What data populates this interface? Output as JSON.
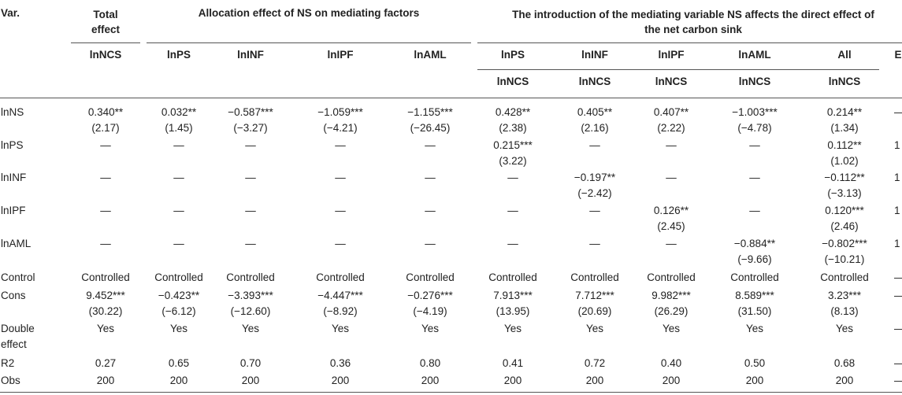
{
  "header": {
    "var_label": "Var.",
    "total_effect_line1": "Total",
    "total_effect_line2": "effect",
    "allocation_title": "Allocation effect of NS on mediating factors",
    "introduction_title_line1": "The introduction of the mediating variable NS affects the direct effect of",
    "introduction_title_line2": "the net carbon sink",
    "subheaders": [
      "lnNCS",
      "lnPS",
      "lnINF",
      "lnIPF",
      "lnAML",
      "lnPS",
      "lnINF",
      "lnIPF",
      "lnAML",
      "All",
      "E"
    ],
    "subheaders2": [
      "",
      "",
      "",
      "",
      "",
      "lnNCS",
      "lnNCS",
      "lnNCS",
      "lnNCS",
      "lnNCS",
      ""
    ]
  },
  "rows": [
    {
      "label": "lnNS",
      "top": [
        "0.340**",
        "0.032**",
        "−0.587***",
        "−1.059***",
        "−1.155***",
        "0.428**",
        "0.405**",
        "0.407**",
        "−1.003***",
        "0.214**",
        "—"
      ],
      "bottom": [
        "(2.17)",
        "(1.45)",
        "(−3.27)",
        "(−4.21)",
        "(−26.45)",
        "(2.38)",
        "(2.16)",
        "(2.22)",
        "(−4.78)",
        "(1.34)",
        ""
      ]
    },
    {
      "label": "lnPS",
      "top": [
        "—",
        "—",
        "—",
        "—",
        "—",
        "0.215***",
        "—",
        "—",
        "—",
        "0.112**",
        "1"
      ],
      "bottom": [
        "",
        "",
        "",
        "",
        "",
        "(3.22)",
        "",
        "",
        "",
        "(1.02)",
        ""
      ]
    },
    {
      "label": "lnINF",
      "top": [
        "—",
        "—",
        "—",
        "—",
        "—",
        "—",
        "−0.197**",
        "—",
        "—",
        "−0.112**",
        "1"
      ],
      "bottom": [
        "",
        "",
        "",
        "",
        "",
        "",
        "(−2.42)",
        "",
        "",
        "(−3.13)",
        ""
      ]
    },
    {
      "label": "lnIPF",
      "top": [
        "—",
        "—",
        "—",
        "—",
        "—",
        "—",
        "—",
        "0.126**",
        "—",
        "0.120***",
        "1"
      ],
      "bottom": [
        "",
        "",
        "",
        "",
        "",
        "",
        "",
        "(2.45)",
        "",
        "(2.46)",
        ""
      ]
    },
    {
      "label": "lnAML",
      "top": [
        "—",
        "—",
        "—",
        "—",
        "—",
        "—",
        "—",
        "—",
        "−0.884**",
        "−0.802***",
        "1"
      ],
      "bottom": [
        "",
        "",
        "",
        "",
        "",
        "",
        "",
        "",
        "(−9.66)",
        "(−10.21)",
        ""
      ]
    },
    {
      "label": "Control",
      "top": [
        "Controlled",
        "Controlled",
        "Controlled",
        "Controlled",
        "Controlled",
        "Controlled",
        "Controlled",
        "Controlled",
        "Controlled",
        "Controlled",
        "—"
      ],
      "bottom": [
        "",
        "",
        "",
        "",
        "",
        "",
        "",
        "",
        "",
        "",
        ""
      ]
    },
    {
      "label": "Cons",
      "top": [
        "9.452***",
        "−0.423**",
        "−3.393***",
        "−4.447***",
        "−0.276***",
        "7.913***",
        "7.712***",
        "9.982***",
        "8.589***",
        "3.23***",
        "—"
      ],
      "bottom": [
        "(30.22)",
        "(−6.12)",
        "(−12.60)",
        "(−8.92)",
        "(−4.19)",
        "(13.95)",
        "(20.69)",
        "(26.29)",
        "(31.50)",
        "(8.13)",
        ""
      ]
    },
    {
      "label": "Double",
      "label2": "effect",
      "top": [
        "Yes",
        "Yes",
        "Yes",
        "Yes",
        "Yes",
        "Yes",
        "Yes",
        "Yes",
        "Yes",
        "Yes",
        "—"
      ],
      "bottom": [
        "",
        "",
        "",
        "",
        "",
        "",
        "",
        "",
        "",
        "",
        ""
      ]
    },
    {
      "label": "R2",
      "top": [
        "0.27",
        "0.65",
        "0.70",
        "0.36",
        "0.80",
        "0.41",
        "0.72",
        "0.40",
        "0.50",
        "0.68",
        "—"
      ],
      "bottom": [
        "",
        "",
        "",
        "",
        "",
        "",
        "",
        "",
        "",
        "",
        ""
      ]
    },
    {
      "label": "Obs",
      "top": [
        "200",
        "200",
        "200",
        "200",
        "200",
        "200",
        "200",
        "200",
        "200",
        "200",
        "—"
      ],
      "bottom": [
        "",
        "",
        "",
        "",
        "",
        "",
        "",
        "",
        "",
        "",
        ""
      ]
    }
  ]
}
